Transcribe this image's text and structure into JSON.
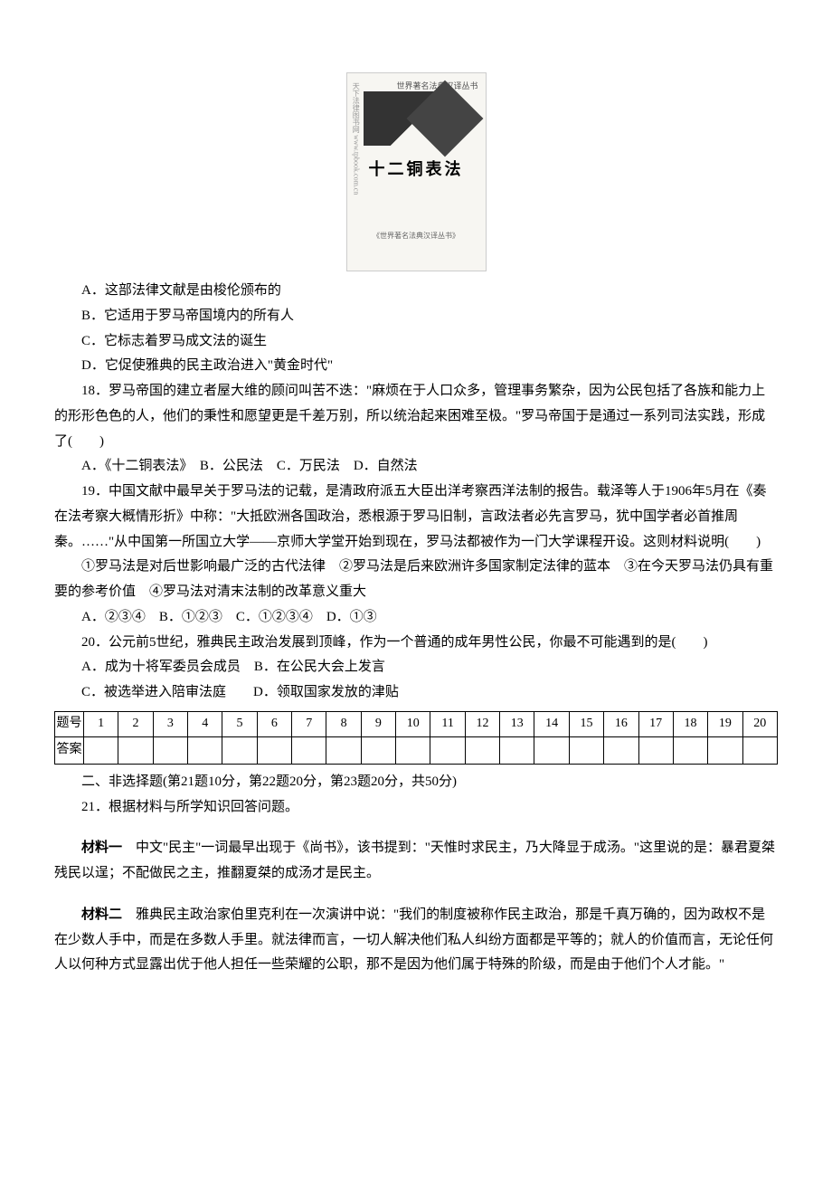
{
  "book_cover": {
    "top_text": "世界著名法典汉译丛书",
    "title": "十二铜表法",
    "bottom_text": "《世界著名法典汉译丛书》",
    "left_text": "天下法律图书网 www.tpbook.com.cn"
  },
  "q17": {
    "optA": "A．这部法律文献是由梭伦颁布的",
    "optB": "B．它适用于罗马帝国境内的所有人",
    "optC": "C．它标志着罗马成文法的诞生",
    "optD": "D．它促使雅典的民主政治进入\"黄金时代\""
  },
  "q18": {
    "text": "18．罗马帝国的建立者屋大维的顾问叫苦不迭：\"麻烦在于人口众多，管理事务繁杂，因为公民包括了各族和能力上的形形色色的人，他们的秉性和愿望更是千差万别，所以统治起来困难至极。\"罗马帝国于是通过一系列司法实践，形成了(　　)",
    "opts": "A．《十二铜表法》　B．公民法　C．万民法　D．自然法"
  },
  "q19": {
    "text": "19．中国文献中最早关于罗马法的记载，是清政府派五大臣出洋考察西洋法制的报告。载泽等人于1906年5月在《奏在法考察大概情形折》中称：\"大抵欧洲各国政治，悉根源于罗马旧制，言政法者必先言罗马，犹中国学者必首推周秦。……\"从中国第一所国立大学——京师大学堂开始到现在，罗马法都被作为一门大学课程开设。这则材料说明(　　)",
    "items": "①罗马法是对后世影响最广泛的古代法律　②罗马法是后来欧洲许多国家制定法律的蓝本　③在今天罗马法仍具有重要的参考价值　④罗马法对清末法制的改革意义重大",
    "opts": "A．②③④　B．①②③　C．①②③④　D．①③"
  },
  "q20": {
    "text": "20．公元前5世纪，雅典民主政治发展到顶峰，作为一个普通的成年男性公民，你最不可能遇到的是(　　)",
    "optsAB": "A．成为十将军委员会成员　B．在公民大会上发言",
    "optsCD": "C．被选举进入陪审法庭　　D．领取国家发放的津贴"
  },
  "table": {
    "row1_label": "题号",
    "row2_label": "答案",
    "cells_row1": [
      "1",
      "2",
      "3",
      "4",
      "5",
      "6",
      "7",
      "8",
      "9",
      "10",
      "11",
      "12",
      "13",
      "14",
      "15",
      "16",
      "17",
      "18",
      "19",
      "20"
    ]
  },
  "section2": {
    "header": "二、非选择题(第21题10分，第22题20分，第23题20分，共50分)",
    "q21": "21．根据材料与所学知识回答问题。"
  },
  "material1": {
    "label": "材料一",
    "text": "　中文\"民主\"一词最早出现于《尚书》，该书提到：\"天惟时求民主，乃大降显于成汤。\"这里说的是：暴君夏桀残民以逞；不配做民之主，推翻夏桀的成汤才是民主。"
  },
  "material2": {
    "label": "材料二",
    "text": "　雅典民主政治家伯里克利在一次演讲中说：\"我们的制度被称作民主政治，那是千真万确的，因为政权不是在少数人手中，而是在多数人手里。就法律而言，一切人解决他们私人纠纷方面都是平等的；就人的价值而言，无论任何人以何种方式显露出优于他人担任一些荣耀的公职，那不是因为他们属于特殊的阶级，而是由于他们个人才能。\""
  }
}
